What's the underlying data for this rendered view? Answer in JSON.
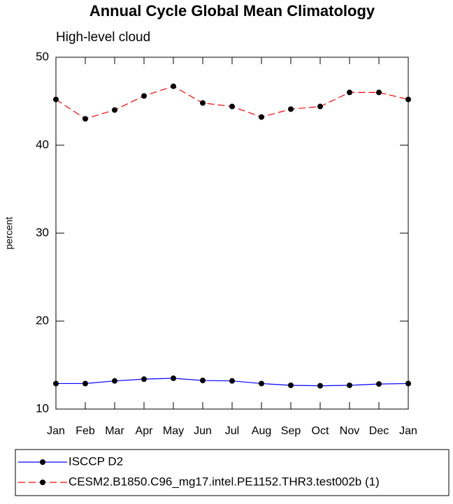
{
  "chart_data": {
    "type": "line",
    "title": "Annual Cycle Global Mean Climatology",
    "subtitle": "High-level cloud",
    "y_label": "percent",
    "categories": [
      "Jan",
      "Feb",
      "Mar",
      "Apr",
      "May",
      "Jun",
      "Jul",
      "Aug",
      "Sep",
      "Oct",
      "Nov",
      "Dec",
      "Jan"
    ],
    "series": [
      {
        "name": "ISCCP D2",
        "color": "#0000ff",
        "dash": "solid",
        "values": [
          12.9,
          12.9,
          13.2,
          13.4,
          13.5,
          13.25,
          13.2,
          12.9,
          12.7,
          12.65,
          12.7,
          12.85,
          12.9
        ]
      },
      {
        "name": "CESM2.B1850.C96_mg17.intel.PE1152.THR3.test002b (1)",
        "color": "#ff0000",
        "dash": "dashed",
        "values": [
          45.2,
          43.0,
          44.0,
          45.6,
          46.7,
          44.8,
          44.4,
          43.2,
          44.1,
          44.4,
          46.0,
          46.0,
          45.2
        ]
      }
    ],
    "ylim": [
      10,
      50
    ],
    "yticks": [
      10,
      20,
      30,
      40,
      50
    ]
  }
}
